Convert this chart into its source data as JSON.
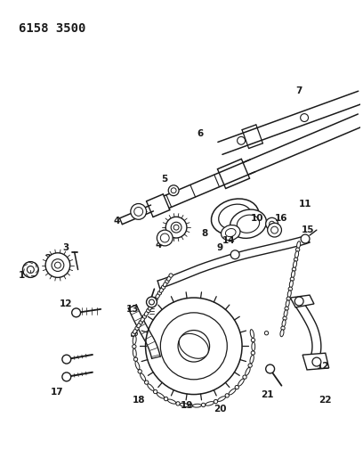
{
  "title": "6158 3500",
  "bg_color": "#ffffff",
  "line_color": "#1a1a1a",
  "title_fontsize": 10,
  "label_fontsize": 7.5,
  "fig_width": 4.08,
  "fig_height": 5.33
}
